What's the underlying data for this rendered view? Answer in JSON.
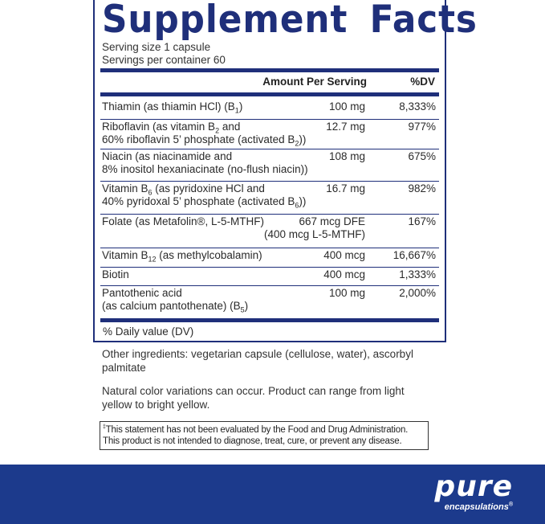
{
  "title": "Supplement Facts",
  "serving_size": "Serving size  1 capsule",
  "servings_per_container": "Servings per container  60",
  "header": {
    "amount": "Amount Per Serving",
    "dv": "%DV"
  },
  "rows": [
    {
      "name1": "Thiamin (as thiamin HCl) (B",
      "sub1": "1",
      "name1b": ")",
      "amount": "100 mg",
      "dv": "8,333%"
    },
    {
      "name1": "Riboflavin (as vitamin B",
      "sub1": "2",
      "name1b": " and",
      "name2": "60% riboflavin 5’ phosphate (activated B",
      "sub2": "2",
      "name2b": "))",
      "amount": "12.7 mg",
      "dv": "977%"
    },
    {
      "name1": "Niacin (as niacinamide and",
      "name2": "8% inositol hexaniacinate (no-flush niacin))",
      "amount": "108 mg",
      "dv": "675%"
    },
    {
      "name1": "Vitamin B",
      "sub1": "6",
      "name1b": " (as pyridoxine HCl and",
      "name2": "40% pyridoxal 5’ phosphate (activated B",
      "sub2": "6",
      "name2b": "))",
      "amount": "16.7 mg",
      "dv": "982%"
    },
    {
      "name1": "Folate (as Metafolin®, L-5-MTHF)",
      "amount": "667 mcg DFE",
      "amount2": "(400 mcg L-5-MTHF)",
      "dv": "167%"
    },
    {
      "name1": "Vitamin B",
      "sub1": "12",
      "name1b": " (as methylcobalamin)",
      "amount": "400 mcg",
      "dv": "16,667%"
    },
    {
      "name1": "Biotin",
      "amount": "400 mcg",
      "dv": "1,333%"
    },
    {
      "name1": "Pantothenic acid",
      "name2": "(as calcium pantothenate) (B",
      "sub2": "5",
      "name2b": ")",
      "amount": "100 mg",
      "dv": "2,000%"
    }
  ],
  "dv_note": "% Daily value (DV)",
  "other_ingredients": "Other ingredients: vegetarian capsule (cellulose, water), ascorbyl palmitate",
  "color_note": "Natural color variations can occur. Product can range from light yellow to bright yellow.",
  "disclaimer_mark": "‡",
  "disclaimer": "This statement has not been evaluated by the Food and Drug Administration. This product is not intended to diagnose, treat, cure, or prevent any disease.",
  "logo": {
    "main": "pure",
    "sub": "encapsulations",
    "reg": "®"
  },
  "colors": {
    "brand_blue": "#1f2f7a",
    "footer_blue": "#1c3a8c"
  }
}
